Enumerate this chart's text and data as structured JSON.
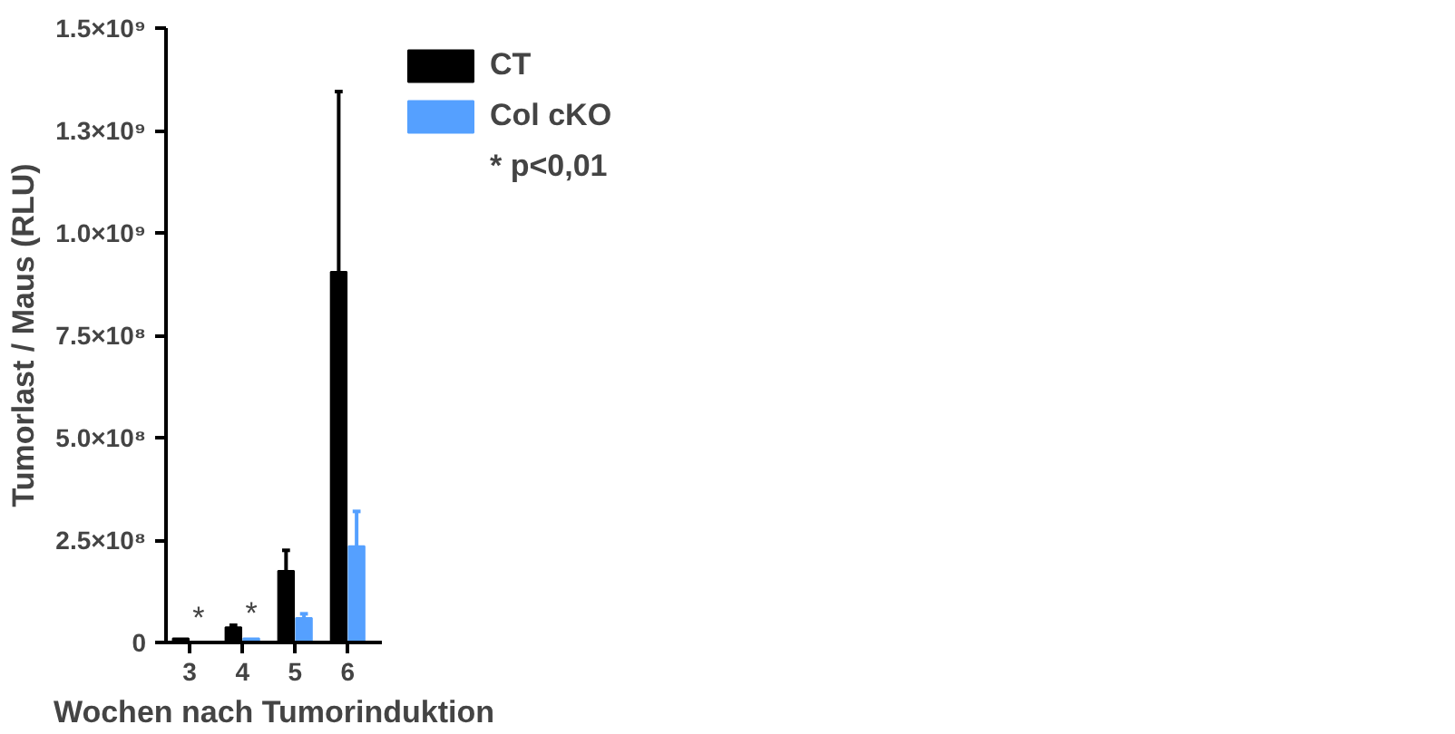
{
  "chart_data": {
    "type": "bar",
    "categories": [
      "3",
      "4",
      "5",
      "6"
    ],
    "xlabel": "Wochen nach Tumorinduktion",
    "ylabel": "Tumorlast / Maus (RLU)",
    "series": [
      {
        "name": "CT",
        "color": "#000000",
        "values": [
          10000000.0,
          37000000.0,
          175000000.0,
          905000000.0
        ],
        "errors": [
          null,
          [
            37000000.0,
            42000000.0
          ],
          [
            175000000.0,
            225000000.0
          ],
          [
            905000000.0,
            1345000000.0
          ]
        ]
      },
      {
        "name": "Col cKO",
        "color": "#55a0ff",
        "values": [
          0,
          10000000.0,
          60000000.0,
          235000000.0
        ],
        "errors": [
          null,
          null,
          [
            60000000.0,
            70000000.0
          ],
          [
            235000000.0,
            320000000.0
          ]
        ]
      }
    ],
    "ylim": [
      0,
      1500000000.0
    ],
    "yticks": [
      0,
      {
        "value": 250000000.0,
        "label": "2.5×10⁸"
      },
      {
        "value": 500000000.0,
        "label": "5.0×10⁸"
      },
      {
        "value": 750000000.0,
        "label": "7.5×10⁸"
      },
      {
        "value": 1000000000.0,
        "label": "1.0×10⁹"
      },
      {
        "value": 1250000000.0,
        "label": "1.3×10⁹"
      },
      {
        "value": 1500000000.0,
        "label": "1.5×10⁹"
      }
    ],
    "annotations": [
      "*",
      "*",
      "* p<0,01"
    ],
    "legend": "top right",
    "grid": false
  }
}
